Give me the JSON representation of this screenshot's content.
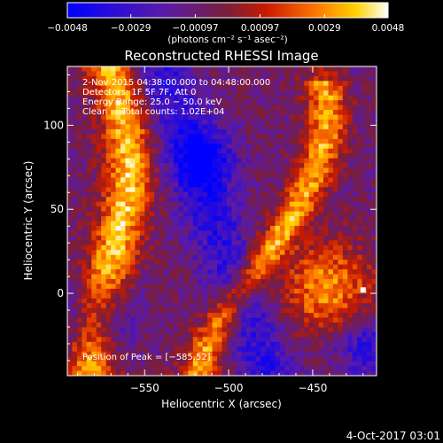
{
  "colorbar": {
    "tick_labels": [
      "−0.0048",
      "−0.0029",
      "−0.00097",
      "0.00097",
      "0.0029",
      "0.0048"
    ],
    "tick_values": [
      -0.0048,
      -0.0029,
      -0.00097,
      0.00097,
      0.0029,
      0.0048
    ],
    "units": "(photons cm⁻² s⁻¹ asec⁻²)"
  },
  "footer_date": "4-Oct-2017 03:01",
  "chart_data": {
    "type": "heatmap",
    "title": "Reconstructed RHESSI Image",
    "xlabel": "Heliocentric X (arcsec)",
    "ylabel": "Heliocentric Y (arcsec)",
    "xlim": [
      -596,
      -412
    ],
    "ylim": [
      -49,
      135
    ],
    "xticks": [
      -550,
      -500,
      -450
    ],
    "xtick_labels": [
      "−550",
      "−500",
      "−450"
    ],
    "yticks": [
      0,
      50,
      100
    ],
    "ytick_labels": [
      "0",
      "50",
      "100"
    ],
    "colormap": "red-temperature (blue → purple → red → orange → yellow → white)",
    "value_range": [
      -0.0048,
      0.0048
    ],
    "peak_position": [
      -585,
      52
    ],
    "annotations": [
      "2-Nov-2015 04:38:00.000 to 04:48:00.000",
      "Detectors: 1F 5F 7F, Att 0",
      "Energy Range: 25.0 − 50.0 keV",
      "Clean     Total counts: 1.02E+04",
      "Position of Peak = [−585,52]"
    ]
  }
}
